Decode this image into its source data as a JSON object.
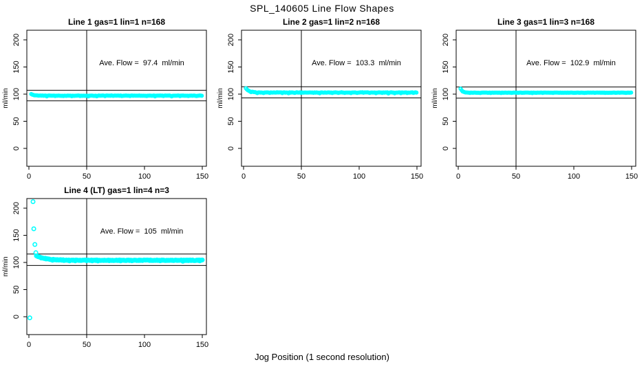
{
  "chart_data": {
    "type": "scatter",
    "title": "SPL_140605  Line Flow Shapes",
    "xlabel": "Jog Position (1 second resolution)",
    "ylabel": "ml/min",
    "point_color": "#00ffff",
    "axis_color": "#000000",
    "xticks": [
      0,
      50,
      100,
      150
    ],
    "yticks": [
      0,
      50,
      100,
      150,
      200
    ],
    "xlim": [
      -2,
      154
    ],
    "ylim": [
      -34,
      218
    ],
    "grid": false,
    "legend": "none",
    "vline_x": 50,
    "panels": [
      {
        "title": "Line 1 gas=1 lin=1 n=168",
        "annotation": "Ave. Flow =  97.4  ml/min",
        "ave_flow": 97.4,
        "n": 168,
        "hlines": [
          107.1,
          87.7
        ],
        "band": {
          "x_start": 2,
          "x_end": 150,
          "step": 0.9,
          "y_settle": 97.2,
          "amp": 2.8,
          "tau": 2.2,
          "jitter": 0.35,
          "dip": 1.1,
          "dip_every": 8,
          "seed": 11,
          "r": 2.2
        },
        "outliers": []
      },
      {
        "title": "Line 2 gas=1 lin=2 n=168",
        "annotation": "Ave. Flow =  103.3  ml/min",
        "ave_flow": 103.3,
        "n": 168,
        "hlines": [
          113.6,
          93.0
        ],
        "band": {
          "x_start": 2,
          "x_end": 150,
          "step": 0.9,
          "y_settle": 103.0,
          "amp": 7.5,
          "tau": 2.8,
          "jitter": 0.4,
          "dip": 1.5,
          "dip_every": 6,
          "seed": 29,
          "r": 2.2
        },
        "outliers": []
      },
      {
        "title": "Line 3 gas=1 lin=3 n=168",
        "annotation": "Ave. Flow =  102.9  ml/min",
        "ave_flow": 102.9,
        "n": 168,
        "hlines": [
          113.2,
          92.6
        ],
        "band": {
          "x_start": 2,
          "x_end": 150,
          "step": 0.9,
          "y_settle": 102.7,
          "amp": 7.5,
          "tau": 1.6,
          "jitter": 0.25,
          "dip": 0.7,
          "dip_every": 10,
          "seed": 41,
          "r": 2.2
        },
        "outliers": []
      },
      {
        "title": "Line 4 (LT) gas=1 lin=4 n=3",
        "annotation": "Ave. Flow =  105  ml/min",
        "ave_flow": 105,
        "n": 3,
        "hlines": [
          115.5,
          94.5
        ],
        "band": {
          "x_start": 6.5,
          "x_end": 150,
          "step": 0.7,
          "y_settle": 104.0,
          "amp": 8.5,
          "tau": 8,
          "jitter": 0.6,
          "dip": 1.3,
          "dip_every": 7,
          "seed": 53,
          "r": 2.7
        },
        "outliers": [
          [
            0.8,
            -2
          ],
          [
            3.6,
            212
          ],
          [
            4.2,
            162
          ],
          [
            5.2,
            133
          ],
          [
            6.0,
            118
          ]
        ]
      }
    ]
  }
}
